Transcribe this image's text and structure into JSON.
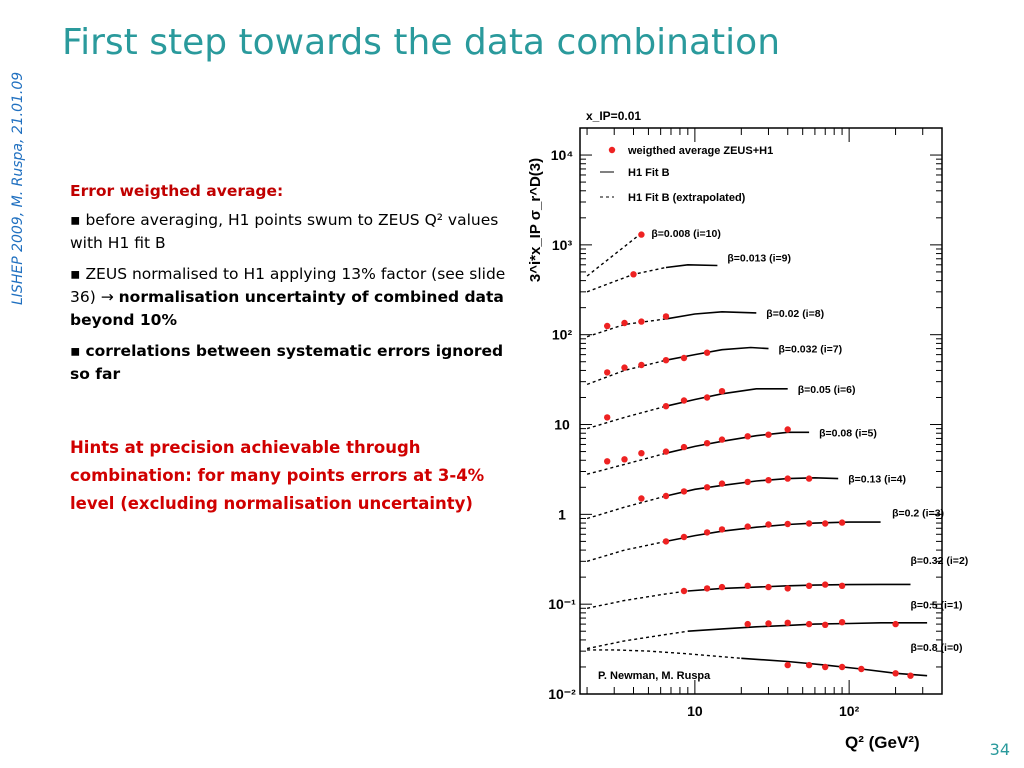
{
  "slide": {
    "title": "First step towards the data combination",
    "side_label": "LISHEP 2009, M. Ruspa, 21.01.09",
    "page_number": "34",
    "accent_color": "#2a9a9c",
    "text": {
      "heading": "Error weigthed average:",
      "bullet1": "before averaging, H1 points swum to ZEUS Q² values with H1 fit B",
      "bullet2_plain": "ZEUS normalised to H1 applying 13% factor (see slide 36) ",
      "bullet2_arrow": "→",
      "bullet2_bold": "normalisation uncertainty of combined data beyond 10%",
      "bullet3": "correlations between systematic errors ignored so far",
      "hint": "Hints at precision achievable through combination: for many points errors at 3-4% level (excluding normalisation uncertainty)"
    }
  },
  "chart_data": {
    "type": "scatter",
    "panel_label": "x_IP=0.01",
    "x_scale": "log",
    "y_scale": "log",
    "xlim": [
      1.8,
      400
    ],
    "ylim": [
      0.01,
      20000
    ],
    "xlabel": "Q² (GeV²)",
    "ylabel": "3^i*x_IP σ_r^D(3)",
    "x_ticks": [
      "10",
      "10²"
    ],
    "y_ticks": [
      "10⁻²",
      "10⁻¹",
      "1",
      "10",
      "10²",
      "10³",
      "10⁴"
    ],
    "point_color": "#ee2222",
    "credit": "P. Newman, M. Ruspa",
    "legend": {
      "position": "top-left",
      "entries": [
        "weigthed average ZEUS+H1",
        "H1 Fit B",
        "H1 Fit B (extrapolated)"
      ]
    },
    "series": [
      {
        "name": "β=0.008 (i=10)",
        "x": [
          4.5
        ],
        "y": [
          1300
        ]
      },
      {
        "name": "β=0.013 (i=9)",
        "x": [
          4.0
        ],
        "y": [
          470
        ]
      },
      {
        "name": "β=0.02 (i=8)",
        "x": [
          2.7,
          3.5,
          4.5,
          6.5
        ],
        "y": [
          125,
          135,
          140,
          160
        ]
      },
      {
        "name": "β=0.032 (i=7)",
        "x": [
          2.7,
          3.5,
          4.5,
          6.5,
          8.5,
          12
        ],
        "y": [
          38,
          43,
          46,
          52,
          55,
          63
        ]
      },
      {
        "name": "β=0.05 (i=6)",
        "x": [
          2.7,
          6.5,
          8.5,
          12,
          15
        ],
        "y": [
          12,
          16,
          18.5,
          20,
          23.5
        ]
      },
      {
        "name": "β=0.08 (i=5)",
        "x": [
          2.7,
          3.5,
          4.5,
          6.5,
          8.5,
          12,
          15,
          22,
          30,
          40
        ],
        "y": [
          3.9,
          4.1,
          4.8,
          5.0,
          5.6,
          6.2,
          6.8,
          7.4,
          7.7,
          8.8
        ]
      },
      {
        "name": "β=0.13 (i=4)",
        "x": [
          4.5,
          6.5,
          8.5,
          12,
          15,
          22,
          30,
          40,
          55
        ],
        "y": [
          1.5,
          1.6,
          1.8,
          2.0,
          2.2,
          2.3,
          2.4,
          2.5,
          2.5
        ]
      },
      {
        "name": "β=0.2 (i=3)",
        "x": [
          6.5,
          8.5,
          12,
          15,
          22,
          30,
          40,
          55,
          70,
          90
        ],
        "y": [
          0.5,
          0.56,
          0.63,
          0.68,
          0.73,
          0.77,
          0.78,
          0.79,
          0.79,
          0.81
        ]
      },
      {
        "name": "β=0.32 (i=2)",
        "x": [
          8.5,
          12,
          15,
          22,
          30,
          40,
          55,
          70,
          90
        ],
        "y": [
          0.14,
          0.15,
          0.155,
          0.16,
          0.155,
          0.15,
          0.16,
          0.165,
          0.16
        ]
      },
      {
        "name": "β=0.5 (i=1)",
        "x": [
          22,
          30,
          40,
          55,
          70,
          90,
          200
        ],
        "y": [
          0.06,
          0.061,
          0.062,
          0.06,
          0.059,
          0.063,
          0.06
        ]
      },
      {
        "name": "β=0.8 (i=0)",
        "x": [
          40,
          55,
          70,
          90,
          120,
          200,
          250
        ],
        "y": [
          0.021,
          0.021,
          0.02,
          0.02,
          0.019,
          0.017,
          0.016
        ]
      }
    ],
    "fit_curves": [
      {
        "name": "β=0.008 (i=10)",
        "extrapolated": {
          "x": [
            2.0,
            4.5
          ],
          "y": [
            450,
            1350
          ]
        }
      },
      {
        "name": "β=0.013 (i=9)",
        "extrapolated": {
          "x": [
            2.0,
            4.0,
            6.5
          ],
          "y": [
            300,
            470,
            560
          ]
        },
        "fit": {
          "x": [
            6.5,
            9,
            14
          ],
          "y": [
            560,
            600,
            590
          ]
        }
      },
      {
        "name": "β=0.02 (i=8)",
        "extrapolated": {
          "x": [
            2.0,
            3.5,
            6.5
          ],
          "y": [
            95,
            130,
            150
          ]
        },
        "fit": {
          "x": [
            6.5,
            10,
            15,
            25
          ],
          "y": [
            150,
            170,
            180,
            175
          ]
        }
      },
      {
        "name": "β=0.032 (i=7)",
        "extrapolated": {
          "x": [
            2.0,
            3.5,
            6.5
          ],
          "y": [
            28,
            40,
            52
          ]
        },
        "fit": {
          "x": [
            6.5,
            10,
            15,
            23,
            30
          ],
          "y": [
            52,
            60,
            68,
            72,
            70
          ]
        }
      },
      {
        "name": "β=0.05 (i=6)",
        "extrapolated": {
          "x": [
            2.0,
            3.5,
            6.5
          ],
          "y": [
            9,
            12,
            16
          ]
        },
        "fit": {
          "x": [
            6.5,
            10,
            15,
            25,
            40
          ],
          "y": [
            16,
            19,
            22,
            25,
            25
          ]
        }
      },
      {
        "name": "β=0.08 (i=5)",
        "extrapolated": {
          "x": [
            2.0,
            3.5,
            6.5
          ],
          "y": [
            2.8,
            3.6,
            4.8
          ]
        },
        "fit": {
          "x": [
            6.5,
            10,
            15,
            25,
            40,
            55
          ],
          "y": [
            4.8,
            5.7,
            6.5,
            7.5,
            8.2,
            8.2
          ]
        }
      },
      {
        "name": "β=0.13 (i=4)",
        "extrapolated": {
          "x": [
            2.0,
            3.5,
            6.5
          ],
          "y": [
            0.9,
            1.2,
            1.6
          ]
        },
        "fit": {
          "x": [
            6.5,
            10,
            15,
            25,
            40,
            60,
            85
          ],
          "y": [
            1.6,
            1.9,
            2.1,
            2.35,
            2.5,
            2.55,
            2.5
          ]
        }
      },
      {
        "name": "β=0.2 (i=3)",
        "extrapolated": {
          "x": [
            2.0,
            3.5,
            6.5
          ],
          "y": [
            0.3,
            0.4,
            0.5
          ]
        },
        "fit": {
          "x": [
            6.5,
            10,
            15,
            25,
            40,
            60,
            100,
            160
          ],
          "y": [
            0.5,
            0.58,
            0.65,
            0.72,
            0.77,
            0.8,
            0.82,
            0.82
          ]
        }
      },
      {
        "name": "β=0.32 (i=2)",
        "extrapolated": {
          "x": [
            2.0,
            3.5,
            6.5,
            9
          ],
          "y": [
            0.09,
            0.11,
            0.13,
            0.14
          ]
        },
        "fit": {
          "x": [
            9,
            15,
            25,
            40,
            60,
            100,
            160,
            250
          ],
          "y": [
            0.14,
            0.15,
            0.155,
            0.16,
            0.163,
            0.165,
            0.166,
            0.166
          ]
        }
      },
      {
        "name": "β=0.5 (i=1)",
        "extrapolated": {
          "x": [
            2.0,
            3.5,
            6.5,
            9
          ],
          "y": [
            0.032,
            0.039,
            0.046,
            0.05
          ]
        },
        "fit": {
          "x": [
            9,
            15,
            25,
            40,
            60,
            100,
            160,
            250,
            320
          ],
          "y": [
            0.05,
            0.053,
            0.056,
            0.058,
            0.06,
            0.061,
            0.062,
            0.062,
            0.062
          ]
        }
      },
      {
        "name": "β=0.8 (i=0)",
        "extrapolated": {
          "x": [
            2.0,
            3.0,
            5,
            9,
            15,
            20
          ],
          "y": [
            0.031,
            0.031,
            0.03,
            0.028,
            0.026,
            0.025
          ]
        },
        "fit": {
          "x": [
            20,
            40,
            70,
            120,
            200,
            320
          ],
          "y": [
            0.025,
            0.023,
            0.021,
            0.019,
            0.017,
            0.016
          ]
        }
      }
    ]
  }
}
